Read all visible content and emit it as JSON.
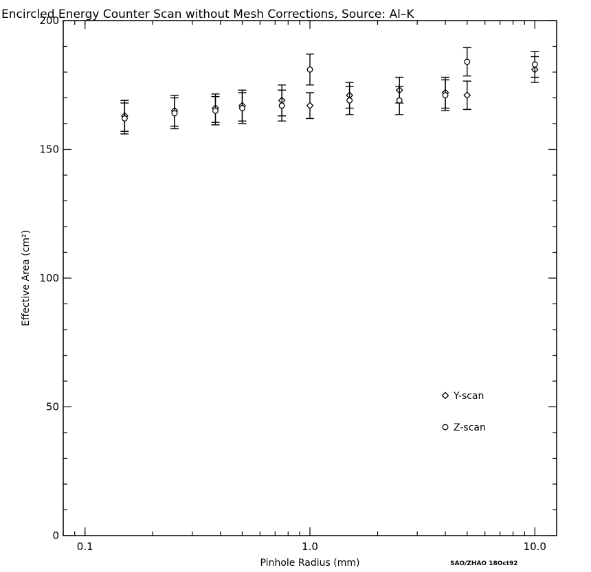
{
  "chart_data": {
    "type": "scatter",
    "title": "Encircled Energy Counter Scan without Mesh Corrections,  Source: Al–K",
    "xlabel": "Pinhole Radius (mm)",
    "ylabel": "Effective Area  (cm²)",
    "x_scale": "log",
    "xlim": [
      0.08,
      12.5
    ],
    "ylim": [
      0,
      200
    ],
    "x_ticks": [
      0.1,
      1.0,
      10.0
    ],
    "x_tick_labels": [
      "0.1",
      "1.0",
      "10.0"
    ],
    "y_ticks": [
      0,
      50,
      100,
      150,
      200
    ],
    "y_tick_labels": [
      "0",
      "50",
      "100",
      "150",
      "200"
    ],
    "grid": false,
    "legend_position": "lower-right",
    "series": [
      {
        "name": "Y-scan",
        "marker": "diamond",
        "points": [
          {
            "x": 0.15,
            "y": 163,
            "err": 6
          },
          {
            "x": 0.25,
            "y": 165,
            "err": 6
          },
          {
            "x": 0.38,
            "y": 166,
            "err": 5.5
          },
          {
            "x": 0.5,
            "y": 167,
            "err": 6
          },
          {
            "x": 0.75,
            "y": 169,
            "err": 6
          },
          {
            "x": 1.0,
            "y": 167,
            "err": 5
          },
          {
            "x": 1.5,
            "y": 171,
            "err": 5
          },
          {
            "x": 2.5,
            "y": 173,
            "err": 5
          },
          {
            "x": 4.0,
            "y": 172,
            "err": 6
          },
          {
            "x": 5.0,
            "y": 171,
            "err": 5.5
          },
          {
            "x": 10.0,
            "y": 181,
            "err": 5
          }
        ]
      },
      {
        "name": "Z-scan",
        "marker": "circle",
        "points": [
          {
            "x": 0.15,
            "y": 162,
            "err": 6
          },
          {
            "x": 0.25,
            "y": 164,
            "err": 6
          },
          {
            "x": 0.38,
            "y": 165,
            "err": 5.5
          },
          {
            "x": 0.5,
            "y": 166,
            "err": 6
          },
          {
            "x": 0.75,
            "y": 167,
            "err": 6
          },
          {
            "x": 1.0,
            "y": 181,
            "err": 6
          },
          {
            "x": 1.5,
            "y": 169,
            "err": 5.5
          },
          {
            "x": 2.5,
            "y": 169,
            "err": 5.5
          },
          {
            "x": 4.0,
            "y": 171,
            "err": 6
          },
          {
            "x": 5.0,
            "y": 184,
            "err": 5.5
          },
          {
            "x": 10.0,
            "y": 183,
            "err": 5
          }
        ]
      }
    ],
    "annotation": "SAO/ZHAO 18Oct92"
  }
}
